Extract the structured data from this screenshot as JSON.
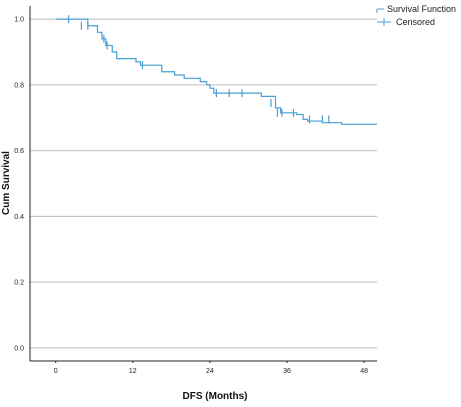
{
  "chart_data": {
    "type": "line",
    "title": "",
    "xlabel": "DFS (Months)",
    "ylabel": "Cum Survival",
    "xlim": [
      -4,
      50
    ],
    "ylim": [
      -0.04,
      1.04
    ],
    "xticks": [
      0,
      12,
      24,
      36,
      48
    ],
    "xtick_labels": [
      "0",
      "12",
      "24",
      "36",
      "48"
    ],
    "yticks": [
      0.0,
      0.2,
      0.4,
      0.6,
      0.8,
      1.0
    ],
    "ytick_labels": [
      "0.0",
      "0.2",
      "0.4",
      "0.6",
      "0.8",
      "1.0"
    ],
    "grid": "horizontal",
    "legend_position": "top-right",
    "colors": {
      "series": "#4a9fd4",
      "grid": "#bdbdbd",
      "axis": "#222222"
    },
    "series": [
      {
        "name": "Survival Function",
        "kind": "step",
        "points": [
          [
            0,
            1.0
          ],
          [
            5,
            0.98
          ],
          [
            6.5,
            0.96
          ],
          [
            7.2,
            0.94
          ],
          [
            7.8,
            0.92
          ],
          [
            8.8,
            0.9
          ],
          [
            9.5,
            0.88
          ],
          [
            12.5,
            0.87
          ],
          [
            13.2,
            0.86
          ],
          [
            16.5,
            0.84
          ],
          [
            18.5,
            0.83
          ],
          [
            20,
            0.82
          ],
          [
            22.5,
            0.81
          ],
          [
            23.5,
            0.8
          ],
          [
            24,
            0.79
          ],
          [
            24.6,
            0.775
          ],
          [
            32,
            0.765
          ],
          [
            34.2,
            0.73
          ],
          [
            35,
            0.715
          ],
          [
            37.5,
            0.71
          ],
          [
            38.5,
            0.695
          ],
          [
            39.2,
            0.69
          ],
          [
            41.5,
            0.685
          ],
          [
            44.5,
            0.68
          ],
          [
            50,
            0.68
          ]
        ]
      },
      {
        "name": "Censored",
        "kind": "markers",
        "points": [
          [
            2,
            1.0
          ],
          [
            4,
            0.98
          ],
          [
            5,
            0.98
          ],
          [
            7.5,
            0.94
          ],
          [
            8,
            0.92
          ],
          [
            13.5,
            0.86
          ],
          [
            25,
            0.775
          ],
          [
            27,
            0.775
          ],
          [
            29,
            0.775
          ],
          [
            33.5,
            0.745
          ],
          [
            34.5,
            0.715
          ],
          [
            35.2,
            0.715
          ],
          [
            37,
            0.715
          ],
          [
            39.5,
            0.695
          ],
          [
            41.5,
            0.695
          ],
          [
            42.5,
            0.695
          ]
        ]
      }
    ]
  }
}
